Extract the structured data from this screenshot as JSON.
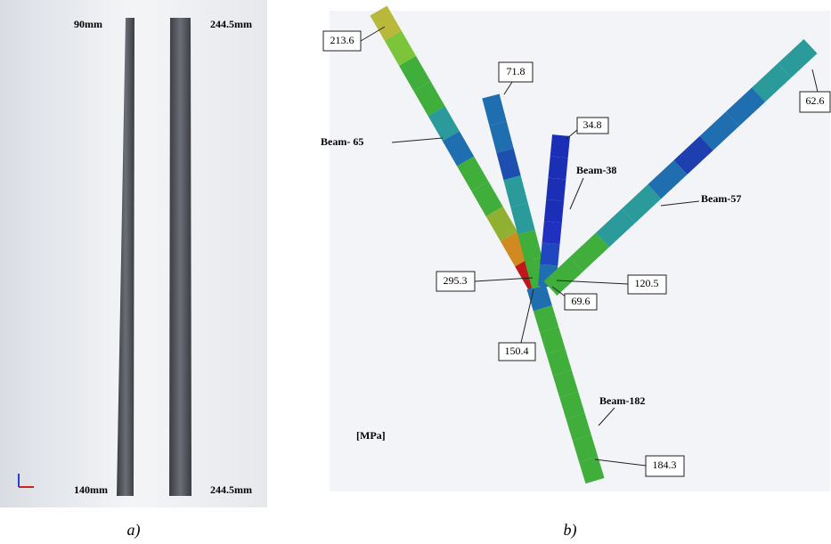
{
  "panel_a": {
    "caption": "a)",
    "labels": [
      "90mm",
      "244.5mm",
      "140mm",
      "244.5mm"
    ]
  },
  "panel_b": {
    "caption": "b)",
    "unit": "[MPa]",
    "beam_labels": [
      "Beam- 65",
      "Beam-38",
      "Beam-57",
      "Beam-182"
    ],
    "stress_labels": [
      "213.6",
      "71.8",
      "34.8",
      "62.6",
      "295.3",
      "120.5",
      "69.6",
      "150.4",
      "184.3"
    ]
  }
}
